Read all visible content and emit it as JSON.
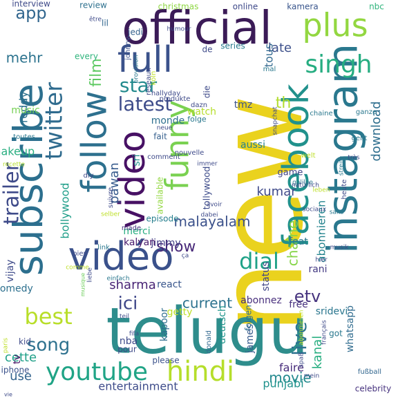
{
  "words": [
    {
      "text": "new",
      "color": "#ead21e",
      "weight": 1.0
    },
    {
      "text": "telugu",
      "color": "#2e8d8c",
      "weight": 0.9
    },
    {
      "text": "official",
      "color": "#3b1b57",
      "weight": 0.75
    },
    {
      "text": "subscribe",
      "color": "#2c6f8e",
      "weight": 0.7
    },
    {
      "text": "instagram",
      "color": "#2a788e",
      "weight": 0.7
    },
    {
      "text": "facebook",
      "color": "#21918c",
      "weight": 0.68
    },
    {
      "text": "vidéo",
      "color": "#3a518b",
      "weight": 0.62
    },
    {
      "text": "video",
      "color": "#471164",
      "weight": 0.6
    },
    {
      "text": "follow",
      "color": "#2d708e",
      "weight": 0.55
    },
    {
      "text": "full",
      "color": "#3b528b",
      "weight": 0.52
    },
    {
      "text": "funny",
      "color": "#7ad151",
      "weight": 0.5
    },
    {
      "text": "plus",
      "color": "#93d741",
      "weight": 0.48
    },
    {
      "text": "hindi",
      "color": "#b5de2b",
      "weight": 0.46
    },
    {
      "text": "youtube",
      "color": "#20a486",
      "weight": 0.44
    },
    {
      "text": "twitter",
      "color": "#2f6b8e",
      "weight": 0.42
    },
    {
      "text": "singh",
      "color": "#26ad81",
      "weight": 0.38
    },
    {
      "text": "trailer",
      "color": "#3e4a89",
      "weight": 0.38
    },
    {
      "text": "best",
      "color": "#b8de29",
      "weight": 0.36
    },
    {
      "text": "dial",
      "color": "#1fa287",
      "weight": 0.34
    },
    {
      "text": "star",
      "color": "#238a8d",
      "weight": 0.32
    },
    {
      "text": "latest",
      "color": "#3e4c8a",
      "weight": 0.32
    },
    {
      "text": "live",
      "color": "#2c728e",
      "weight": 0.32
    },
    {
      "text": "song",
      "color": "#2d718e",
      "weight": 0.3
    },
    {
      "text": "ici",
      "color": "#3f4788",
      "weight": 0.3
    },
    {
      "text": "app",
      "color": "#31668e",
      "weight": 0.3
    },
    {
      "text": "film",
      "color": "#5ec962",
      "weight": 0.28
    },
    {
      "text": "mehr",
      "color": "#2c738e",
      "weight": 0.26
    },
    {
      "text": "etv",
      "color": "#46337e",
      "weight": 0.26
    },
    {
      "text": "show",
      "color": "#482979",
      "weight": 0.26
    },
    {
      "text": "chaîne",
      "color": "#86d549",
      "weight": 0.25
    },
    {
      "text": "kanal",
      "color": "#28ae80",
      "weight": 0.24
    },
    {
      "text": "malayalam",
      "color": "#3b518b",
      "weight": 0.24
    },
    {
      "text": "current",
      "color": "#2c728e",
      "weight": 0.24
    },
    {
      "text": "movie",
      "color": "#23898e",
      "weight": 0.24
    },
    {
      "text": "sharma",
      "color": "#482475",
      "weight": 0.22
    },
    {
      "text": "kumar",
      "color": "#3e4989",
      "weight": 0.22
    },
    {
      "text": "late",
      "color": "#3c4f8a",
      "weight": 0.22
    },
    {
      "text": "tous",
      "color": "#31688e",
      "weight": 0.22
    },
    {
      "text": "download",
      "color": "#2e6e8e",
      "weight": 0.22
    },
    {
      "text": "abonnieren",
      "color": "#25848e",
      "weight": 0.22
    },
    {
      "text": "pawan",
      "color": "#375b8d",
      "weight": 0.22
    },
    {
      "text": "th",
      "color": "#b2dd2d",
      "weight": 0.22
    },
    {
      "text": "cette",
      "color": "#1fa088",
      "weight": 0.2
    },
    {
      "text": "use",
      "color": "#33638d",
      "weight": 0.2
    },
    {
      "text": "bollywood",
      "color": "#1f9e89",
      "weight": 0.2
    },
    {
      "text": "reddy",
      "color": "#2d718e",
      "weight": 0.2
    },
    {
      "text": "vijay",
      "color": "#3e4a89",
      "weight": 0.18
    },
    {
      "text": "makeup",
      "color": "#28ae80",
      "weight": 0.16
    },
    {
      "text": "entertainment",
      "color": "#3e4c8a",
      "weight": 0.16
    },
    {
      "text": "rani",
      "color": "#443a83",
      "weight": 0.16
    },
    {
      "text": "status",
      "color": "#404688",
      "weight": 0.16
    },
    {
      "text": "feat",
      "color": "#2a788e",
      "weight": 0.16
    },
    {
      "text": "faire",
      "color": "#472c7a",
      "weight": 0.16
    },
    {
      "text": "punjabi",
      "color": "#20928c",
      "weight": 0.16
    },
    {
      "text": "james",
      "color": "#375a8c",
      "weight": 0.16
    },
    {
      "text": "deutsch",
      "color": "#1f958b",
      "weight": 0.16
    },
    {
      "text": "kapoor",
      "color": "#2e6e8e",
      "weight": 0.16
    },
    {
      "text": "free",
      "color": "#46307e",
      "weight": 0.16
    },
    {
      "text": "jimmy",
      "color": "#424086",
      "weight": 0.16
    },
    {
      "text": "merci",
      "color": "#27ad81",
      "weight": 0.16
    },
    {
      "text": "kalyan",
      "color": "#48196b",
      "weight": 0.16
    },
    {
      "text": "nba",
      "color": "#3e4a89",
      "weight": 0.16
    },
    {
      "text": "comedy",
      "color": "#2d708e",
      "weight": 0.15
    },
    {
      "text": "react",
      "color": "#39568c",
      "weight": 0.15
    },
    {
      "text": "aussi",
      "color": "#26818e",
      "weight": 0.15
    },
    {
      "text": "music",
      "color": "#75d054",
      "weight": 0.15
    },
    {
      "text": "game",
      "color": "#404588",
      "weight": 0.14
    },
    {
      "text": "tollywood",
      "color": "#3e4c8a",
      "weight": 0.14
    },
    {
      "text": "sri",
      "color": "#21918c",
      "weight": 0.14
    },
    {
      "text": "sridevi",
      "color": "#2a768e",
      "weight": 0.14
    },
    {
      "text": "whatsapp",
      "color": "#2f6b8e",
      "weight": 0.14
    },
    {
      "text": "folgen",
      "color": "#2e6d8e",
      "weight": 0.14
    },
    {
      "text": "getty",
      "color": "#bddf26",
      "weight": 0.14
    },
    {
      "text": "abonnez",
      "color": "#472e7c",
      "weight": 0.14
    },
    {
      "text": "available",
      "color": "#93d741",
      "weight": 0.13
    },
    {
      "text": "fait",
      "color": "#355f8d",
      "weight": 0.13
    },
    {
      "text": "watch",
      "color": "#b5de2b",
      "weight": 0.13
    },
    {
      "text": "monde",
      "color": "#2e6f8e",
      "weight": 0.13
    },
    {
      "text": "tmz",
      "color": "#3b528b",
      "weight": 0.13
    },
    {
      "text": "episode",
      "color": "#277f8e",
      "weight": 0.12
    },
    {
      "text": "every",
      "color": "#2fb47c",
      "weight": 0.12
    },
    {
      "text": "jedi",
      "color": "#34618d",
      "weight": 0.12
    },
    {
      "text": "series",
      "color": "#297a8e",
      "weight": 0.11
    },
    {
      "text": "kamera",
      "color": "#39558c",
      "weight": 0.1
    },
    {
      "text": "online",
      "color": "#3e4989",
      "weight": 0.1
    },
    {
      "text": "nbc",
      "color": "#2fb47c",
      "weight": 0.1
    },
    {
      "text": "interview",
      "color": "#3e4a89",
      "weight": 0.1
    },
    {
      "text": "review",
      "color": "#2d708e",
      "weight": 0.1
    },
    {
      "text": "christmas",
      "color": "#8fd744",
      "weight": 0.1
    },
    {
      "text": "johnny",
      "color": "#3b528b",
      "weight": 0.09
    },
    {
      "text": "lil",
      "color": "#31668e",
      "weight": 0.1
    },
    {
      "text": "tv",
      "color": "#471365",
      "weight": 0.12
    },
    {
      "text": "kid",
      "color": "#3e4a89",
      "weight": 0.1
    },
    {
      "text": "iphone",
      "color": "#3b528b",
      "weight": 0.09
    },
    {
      "text": "made",
      "color": "#46327e",
      "weight": 0.09
    },
    {
      "text": "link",
      "color": "#2a788e",
      "weight": 0.09
    },
    {
      "text": "bien",
      "color": "#3e4a89",
      "weight": 0.09
    },
    {
      "text": "please",
      "color": "#3b528b",
      "weight": 0.09
    },
    {
      "text": "donald",
      "color": "#31688e",
      "weight": 0.09
    },
    {
      "text": "pour",
      "color": "#3e4a89",
      "weight": 0.09
    },
    {
      "text": "got",
      "color": "#2a788e",
      "weight": 0.09
    },
    {
      "text": "celebrity",
      "color": "#46327e",
      "weight": 0.09
    },
    {
      "text": "fußball",
      "color": "#31668e",
      "weight": 0.09
    },
    {
      "text": "mal",
      "color": "#2a788e",
      "weight": 0.09
    },
    {
      "text": "de",
      "color": "#3e4a89",
      "weight": 0.1
    },
    {
      "text": "die",
      "color": "#3e4a89",
      "weight": 0.1
    },
    {
      "text": "folge",
      "color": "#2a788e",
      "weight": 0.09
    },
    {
      "text": "ganze",
      "color": "#2a788e",
      "weight": 0.09
    },
    {
      "text": "chaine",
      "color": "#2a788e",
      "weight": 0.09
    },
    {
      "text": "geht",
      "color": "#2a788e",
      "weight": 0.09
    },
    {
      "text": "musique",
      "color": "#6ccd5a",
      "weight": 0.08
    },
    {
      "text": "réseaux",
      "color": "#3e4a89",
      "weight": 0.08
    },
    {
      "text": "toutes",
      "color": "#2a788e",
      "weight": 0.08
    },
    {
      "text": "recette",
      "color": "#b5de2b",
      "weight": 0.07
    },
    {
      "text": "diy",
      "color": "#3e4a89",
      "weight": 0.08
    },
    {
      "text": "suivre",
      "color": "#3e4a89",
      "weight": 0.08
    },
    {
      "text": "selber",
      "color": "#bddf26",
      "weight": 0.07
    },
    {
      "text": "nouvelle",
      "color": "#3e4a89",
      "weight": 0.08
    },
    {
      "text": "neue",
      "color": "#3e4a89",
      "weight": 0.08
    },
    {
      "text": "comment",
      "color": "#3e4a89",
      "weight": 0.07
    },
    {
      "text": "hallyday",
      "color": "#3e4a89",
      "weight": 0.08
    },
    {
      "text": "produkte",
      "color": "#3e4a89",
      "weight": 0.07
    },
    {
      "text": "dazn",
      "color": "#3e4a89",
      "weight": 0.07
    },
    {
      "text": "köln",
      "color": "#bddf26",
      "weight": 0.07
    },
    {
      "text": "provision",
      "color": "#2a788e",
      "weight": 0.07
    },
    {
      "text": "immer",
      "color": "#3e4a89",
      "weight": 0.07
    },
    {
      "text": "très",
      "color": "#3e4a89",
      "weight": 0.07
    },
    {
      "text": "snapchat",
      "color": "#3e4a89",
      "weight": 0.07
    },
    {
      "text": "streife",
      "color": "#2a788e",
      "weight": 0.07
    },
    {
      "text": "welt",
      "color": "#bddf26",
      "weight": 0.07
    },
    {
      "text": "galileo",
      "color": "#2a788e",
      "weight": 0.07
    },
    {
      "text": "natürlich",
      "color": "#3e4a89",
      "weight": 0.07
    },
    {
      "text": "heute",
      "color": "#3e4a89",
      "weight": 0.07
    },
    {
      "text": "sans",
      "color": "#2a788e",
      "weight": 0.07
    },
    {
      "text": "musik",
      "color": "#3e4a89",
      "weight": 0.07
    },
    {
      "text": "leben",
      "color": "#bddf26",
      "weight": 0.07
    },
    {
      "text": "sociaux",
      "color": "#3e4a89",
      "weight": 0.07
    },
    {
      "text": "hier",
      "color": "#3e4a89",
      "weight": 0.07
    },
    {
      "text": "abonnieren",
      "color": "#bddf26",
      "weight": 0.06
    },
    {
      "text": "ça",
      "color": "#3e4a89",
      "weight": 0.07
    },
    {
      "text": "avoir",
      "color": "#3e4a89",
      "weight": 0.07
    },
    {
      "text": "dabei",
      "color": "#3e4a89",
      "weight": 0.07
    },
    {
      "text": "liebe",
      "color": "#3e4a89",
      "weight": 0.07
    },
    {
      "text": "comme",
      "color": "#bddf26",
      "weight": 0.06
    },
    {
      "text": "einfach",
      "color": "#2a788e",
      "weight": 0.07
    },
    {
      "text": "teil",
      "color": "#3e4a89",
      "weight": 0.07
    },
    {
      "text": "fifa",
      "color": "#3e4a89",
      "weight": 0.07
    },
    {
      "text": "paris",
      "color": "#bddf26",
      "weight": 0.06
    },
    {
      "text": "vie",
      "color": "#3e4a89",
      "weight": 0.07
    },
    {
      "text": "français",
      "color": "#3e4a89",
      "weight": 0.07
    },
    {
      "text": "spaß",
      "color": "#3e4a89",
      "weight": 0.07
    },
    {
      "text": "mein",
      "color": "#3e4a89",
      "weight": 0.07
    },
    {
      "text": "être",
      "color": "#3e4a89",
      "weight": 0.07
    },
    {
      "text": "humour",
      "color": "#3e4a89",
      "weight": 0.07
    }
  ]
}
